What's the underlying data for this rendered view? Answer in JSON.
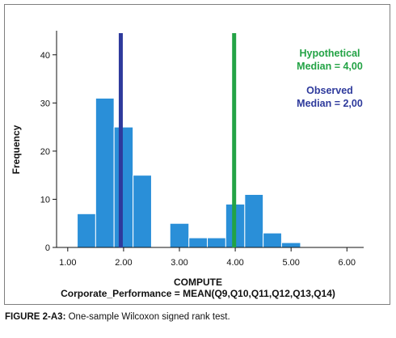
{
  "chart_data": {
    "type": "bar",
    "xlabel": "COMPUTE",
    "xlabel_line2": "Corporate_Performance = MEAN(Q9,Q10,Q11,Q12,Q13,Q14)",
    "ylabel": "Frequency",
    "xlim": [
      0.8,
      6.3
    ],
    "ylim": [
      0,
      45
    ],
    "x_ticks": [
      1.0,
      2.0,
      3.0,
      4.0,
      5.0,
      6.0
    ],
    "x_tick_labels": [
      "1.00",
      "2.00",
      "3.00",
      "4.00",
      "5.00",
      "6.00"
    ],
    "y_ticks": [
      0,
      10,
      20,
      30,
      40
    ],
    "y_tick_labels": [
      "0",
      "10",
      "20",
      "30",
      "40"
    ],
    "bins": [
      {
        "x0": 1.17,
        "x1": 1.5,
        "value": 7
      },
      {
        "x0": 1.5,
        "x1": 1.83,
        "value": 31
      },
      {
        "x0": 1.83,
        "x1": 2.17,
        "value": 25
      },
      {
        "x0": 2.17,
        "x1": 2.5,
        "value": 15
      },
      {
        "x0": 2.83,
        "x1": 3.17,
        "value": 5
      },
      {
        "x0": 3.17,
        "x1": 3.5,
        "value": 2
      },
      {
        "x0": 3.5,
        "x1": 3.83,
        "value": 2
      },
      {
        "x0": 3.83,
        "x1": 4.17,
        "value": 9
      },
      {
        "x0": 4.17,
        "x1": 4.5,
        "value": 11
      },
      {
        "x0": 4.5,
        "x1": 4.83,
        "value": 3
      },
      {
        "x0": 4.83,
        "x1": 5.17,
        "value": 1
      }
    ],
    "bar_color": "#2a8fd8",
    "reference_lines": [
      {
        "name": "Observed",
        "x": 1.95,
        "label_line1": "Observed",
        "label_line2": "Median = 2,00",
        "color": "#2e3a9c"
      },
      {
        "name": "Hypothetical",
        "x": 3.98,
        "label_line1": "Hypothetical",
        "label_line2": "Median = 4,00",
        "color": "#23a345"
      }
    ],
    "ref_line_top": 44.5,
    "grid": false
  },
  "caption": {
    "label": "FIGURE 2-A3:",
    "text": " One-sample Wilcoxon signed rank test."
  }
}
